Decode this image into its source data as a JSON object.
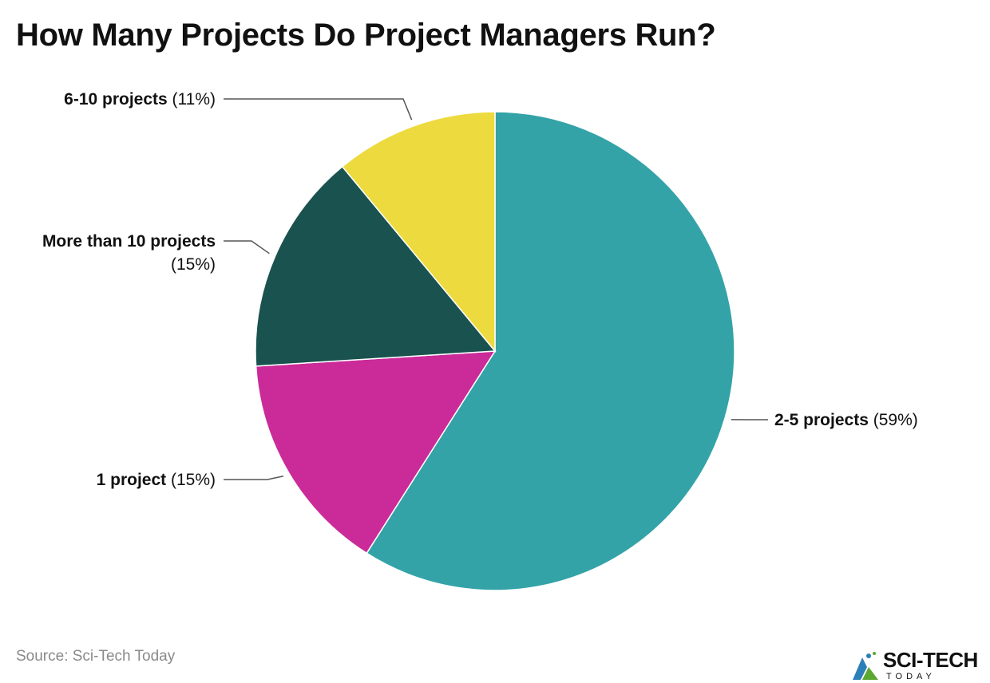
{
  "source": "Source: Sci-Tech Today",
  "brand": {
    "name": "SCI-TECH",
    "subtitle": "TODAY",
    "icon": "sci-tech-logo-icon"
  },
  "chart_data": {
    "type": "pie",
    "title": "How Many Projects Do Project Managers Run?",
    "slices": [
      {
        "label": "2-5 projects",
        "value": 59,
        "value_label": "(59%)",
        "color": "#33A3A8"
      },
      {
        "label": "1 project",
        "value": 15,
        "value_label": "(15%)",
        "color": "#CB2A99"
      },
      {
        "label": "More than 10 projects",
        "value": 15,
        "value_label": "(15%)",
        "color": "#19524F"
      },
      {
        "label": "6-10 projects",
        "value": 11,
        "value_label": "(11%)",
        "color": "#EDDA3E"
      }
    ],
    "start_angle": "12 o'clock",
    "direction": "clockwise",
    "legend": "none"
  }
}
